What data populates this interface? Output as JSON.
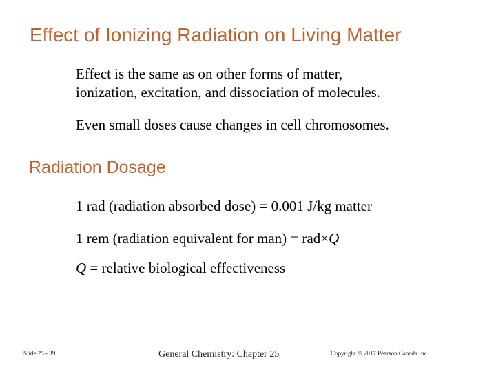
{
  "slide": {
    "title": "Effect of Ionizing Radiation on Living Matter",
    "paragraph1_line1": "Effect is the same as on other forms of matter,",
    "paragraph1_line2": "ionization, excitation, and dissociation of molecules.",
    "paragraph2": "Even small doses cause changes in cell chromosomes.",
    "section_heading": "Radiation Dosage",
    "rad_definition": "1 rad (radiation absorbed dose) = 0.001 J/kg matter",
    "rem_definition_prefix": "1 rem (radiation equivalent for man) = rad×",
    "rem_definition_q": "Q",
    "q_symbol": "Q",
    "q_definition": " = relative biological effectiveness"
  },
  "footer": {
    "slide_number": "Slide 25 - 39",
    "chapter": "General Chemistry: Chapter 25",
    "copyright": "Copyright © 2017 Pearson Canada Inc."
  },
  "colors": {
    "heading": "#c0622b",
    "text": "#000000"
  }
}
